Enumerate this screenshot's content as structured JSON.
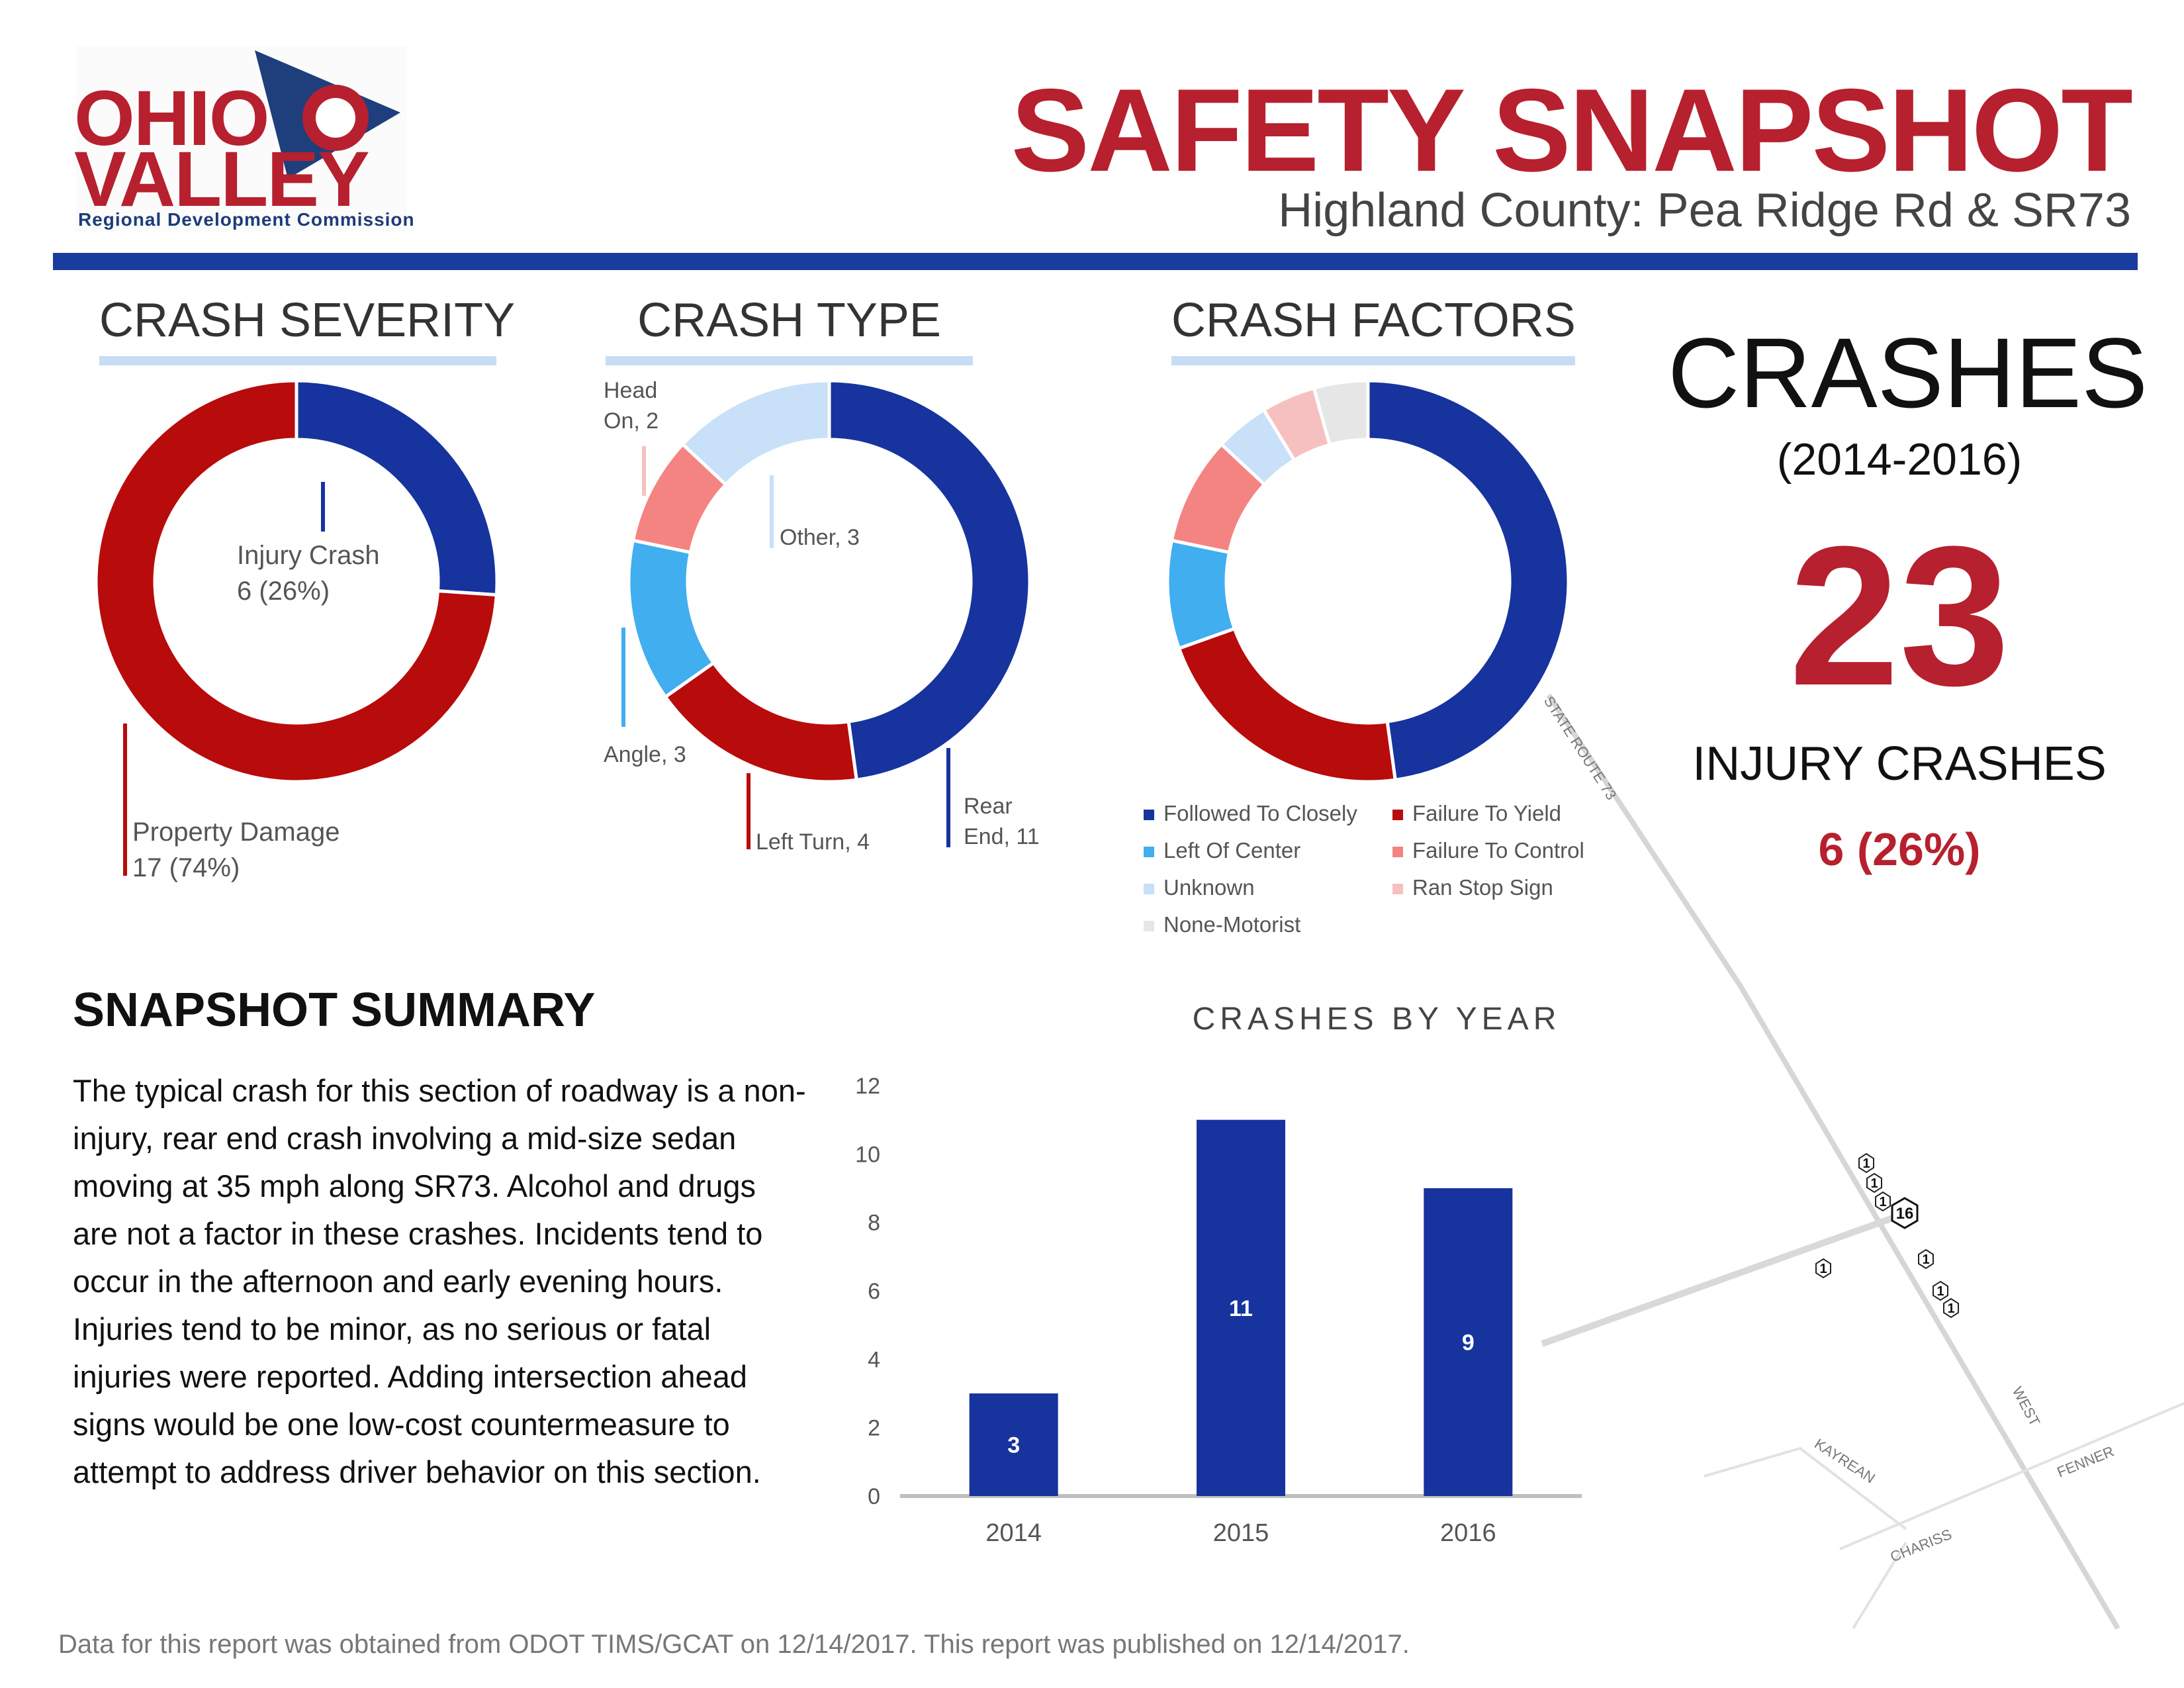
{
  "logo": {
    "line1": "OHIO",
    "line2": "VALLEY",
    "tagline": "Regional Development Commission"
  },
  "header": {
    "title": "SAFETY SNAPSHOT",
    "subtitle": "Highland County: Pea Ridge Rd & SR73"
  },
  "colors": {
    "brand_red": "#b7202e",
    "brand_blue": "#1a3c9e",
    "dark_blue": "#16339e",
    "red": "#b80b0b",
    "light_blue": "#41aef0",
    "salmon": "#f48482",
    "pale_blue": "#c8e0f8",
    "pink": "#f7c0c0",
    "gray": "#e6e6e6"
  },
  "sections": {
    "severity": "CRASH SEVERITY",
    "type": "CRASH TYPE",
    "factors": "CRASH FACTORS"
  },
  "severity_labels": {
    "injury_name": "Injury Crash",
    "injury_val": "6 (26%)",
    "property_name": "Property Damage",
    "property_val": "17 (74%)"
  },
  "type_labels": {
    "head_on_1": "Head",
    "head_on_2": "On, 2",
    "other": "Other, 3",
    "angle": "Angle, 3",
    "left_turn": "Left Turn, 4",
    "rear_end_1": "Rear",
    "rear_end_2": "End, 11"
  },
  "factor_legend": [
    {
      "label": "Followed To Closely",
      "color": "#16339e"
    },
    {
      "label": "Failure To Yield",
      "color": "#b80b0b"
    },
    {
      "label": "Left Of Center",
      "color": "#41aef0"
    },
    {
      "label": "Failure To Control",
      "color": "#f48482"
    },
    {
      "label": "Unknown",
      "color": "#c8e0f8"
    },
    {
      "label": "Ran Stop Sign",
      "color": "#f7c0c0"
    },
    {
      "label": "None-Motorist",
      "color": "#e6e6e6"
    }
  ],
  "stats": {
    "crashes_label": "CRASHES",
    "years": "(2014-2016)",
    "total": "23",
    "injury_label": "INJURY CRASHES",
    "injury_value": "6 (26%)"
  },
  "summary": {
    "heading": "SNAPSHOT SUMMARY",
    "body": "The typical crash for this section of roadway is a non-injury, rear end crash involving a mid-size sedan moving at 35 mph along SR73. Alcohol and drugs are not a factor in these crashes. Incidents tend to occur in the afternoon and early evening hours. Injuries tend to be minor, as no serious or fatal injuries were reported. Adding intersection ahead signs would be one low-cost countermeasure to attempt to address driver behavior on this section."
  },
  "map": {
    "roads": [
      "STATE ROUTE 73",
      "WEST",
      "KAYREAN",
      "FENNER",
      "CHARISS"
    ],
    "markers": [
      "1",
      "1",
      "1",
      "16",
      "1",
      "1",
      "1",
      "1"
    ]
  },
  "footer": "Data for this report was obtained from ODOT TIMS/GCAT on 12/14/2017. This report was published on 12/14/2017.",
  "chart_data": [
    {
      "type": "pie",
      "title": "CRASH SEVERITY",
      "categories": [
        "Injury Crash",
        "Property Damage"
      ],
      "values": [
        6,
        17
      ],
      "colors": [
        "#16339e",
        "#b80b0b"
      ]
    },
    {
      "type": "pie",
      "title": "CRASH TYPE",
      "categories": [
        "Rear End",
        "Left Turn",
        "Angle",
        "Head On",
        "Other"
      ],
      "values": [
        11,
        4,
        3,
        2,
        3
      ],
      "colors": [
        "#16339e",
        "#b80b0b",
        "#41aef0",
        "#f48482",
        "#c8e0f8"
      ]
    },
    {
      "type": "pie",
      "title": "CRASH FACTORS",
      "categories": [
        "Followed To Closely",
        "Failure To Yield",
        "Left Of Center",
        "Failure To Control",
        "Unknown",
        "Ran Stop Sign",
        "None-Motorist"
      ],
      "values": [
        11,
        5,
        2,
        2,
        1,
        1,
        1
      ],
      "colors": [
        "#16339e",
        "#b80b0b",
        "#41aef0",
        "#f48482",
        "#c8e0f8",
        "#f7c0c0",
        "#e6e6e6"
      ]
    },
    {
      "type": "bar",
      "title": "CRASHES BY YEAR",
      "categories": [
        "2014",
        "2015",
        "2016"
      ],
      "values": [
        3,
        11,
        9
      ],
      "ylim": [
        0,
        12
      ],
      "yticks": [
        0,
        2,
        4,
        6,
        8,
        10,
        12
      ],
      "color": "#16339e"
    }
  ]
}
